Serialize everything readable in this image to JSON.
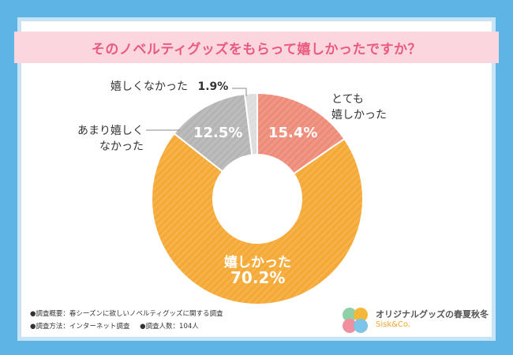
{
  "title": "そのノベルティグッズをもらって嬉しかったですか？",
  "chart_data": {
    "type": "pie",
    "donut": true,
    "title": "そのノベルティグッズをもらって嬉しかったですか？",
    "slices": [
      {
        "label": "とても嬉しかった",
        "value": 15.4,
        "display": "15.4%",
        "color": "#ee8a78"
      },
      {
        "label": "嬉しかった",
        "value": 70.2,
        "display": "70.2%",
        "color": "#f5a833"
      },
      {
        "label": "あまり嬉しくなかった",
        "value": 12.5,
        "display": "12.5%",
        "color": "#b4b4b4"
      },
      {
        "label": "嬉しくなかった",
        "value": 1.9,
        "display": "1.9%",
        "color": "#dcdcdc"
      }
    ]
  },
  "labels": {
    "totemo_line1": "とても",
    "totemo_line2": "嬉しかった",
    "ureshi": "嬉しかった",
    "amari_line1": "あまり嬉しく",
    "amari_line2": "なかった",
    "nakatta": "嬉しくなかった",
    "nakatta_pct": "1.9%"
  },
  "notes": {
    "line1": "●調査概要：春シーズンに欲しいノベルティグッズに関する調査",
    "line2a": "●調査方法：インターネット調査",
    "line2b": "●調査人数：104人"
  },
  "brand": {
    "name": "オリジナルグッズの春夏秋冬",
    "sub": "Sisk&Co."
  }
}
